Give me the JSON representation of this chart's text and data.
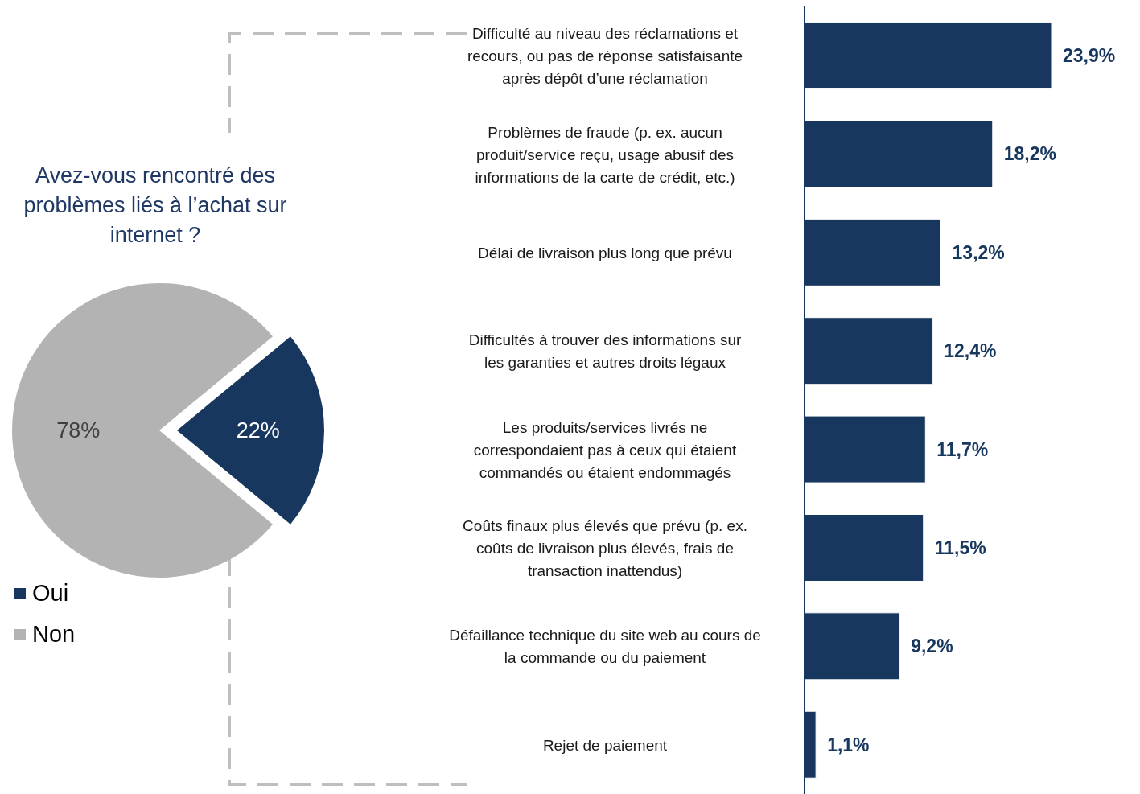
{
  "chart_data": [
    {
      "type": "pie",
      "title": "Avez-vous rencontré des problèmes liés à l’achat sur internet ?",
      "categories": [
        "Oui",
        "Non"
      ],
      "values": [
        22,
        78
      ],
      "colors": [
        "#17375e",
        "#b3b3b3"
      ],
      "value_labels": [
        "22%",
        "78%"
      ],
      "legend": "bottom left"
    },
    {
      "type": "bar",
      "orientation": "horizontal",
      "categories": [
        "Difficulté au niveau des réclamations et recours, ou pas de réponse satisfaisante après dépôt d’une réclamation",
        "Problèmes de fraude (p. ex. aucun produit/service reçu, usage abusif des informations de la carte de crédit, etc.)",
        "Délai de livraison plus long que prévu",
        "Difficultés à trouver des informations sur les garanties et autres droits légaux",
        "Les produits/services livrés ne correspondaient pas à ceux qui étaient commandés ou étaient endommagés",
        "Coûts finaux plus élevés que prévu (p. ex. coûts de livraison plus élevés, frais de transaction inattendus)",
        "Défaillance technique du site web au cours de la commande ou du paiement",
        "Rejet de paiement"
      ],
      "values": [
        23.9,
        18.2,
        13.2,
        12.4,
        11.7,
        11.5,
        9.2,
        1.1
      ],
      "value_labels": [
        "23,9%",
        "18,2%",
        "13,2%",
        "12,4%",
        "11,7%",
        "11,5%",
        "9,2%",
        "1,1%"
      ],
      "color": "#17375e",
      "tick_labels": "y"
    }
  ]
}
